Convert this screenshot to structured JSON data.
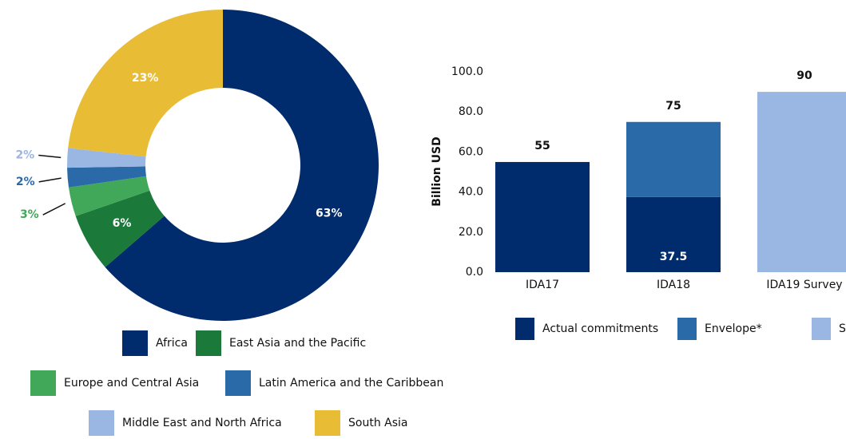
{
  "chart_data": [
    {
      "type": "donut",
      "categories": [
        "Africa",
        "East Asia and the Pacific",
        "Europe and Central Asia",
        "Latin America and the Caribbean",
        "Middle East and North Africa",
        "South Asia"
      ],
      "values": [
        63,
        6,
        3,
        2,
        2,
        23
      ],
      "value_labels": [
        "63%",
        "6%",
        "3%",
        "2%",
        "2%",
        "23%"
      ],
      "colors": [
        "#002b6c",
        "#1b7a3a",
        "#41a85a",
        "#2a6aa8",
        "#9ab6e2",
        "#e8bd35"
      ]
    },
    {
      "type": "stacked_bar",
      "ylabel": "Billion USD",
      "categories": [
        "IDA17",
        "IDA18",
        "IDA19 Survey"
      ],
      "series": [
        {
          "name": "Actual commitments",
          "color": "#002b6c",
          "values": [
            55,
            37.5,
            null
          ]
        },
        {
          "name": "Envelope*",
          "color": "#2a6aa8",
          "values": [
            null,
            37.5,
            null
          ]
        },
        {
          "name": "Survey",
          "color": "#9ab6e2",
          "values": [
            null,
            null,
            90
          ]
        }
      ],
      "totals": [
        55,
        75,
        90
      ],
      "ylim": [
        0,
        100
      ],
      "yticks": [
        {
          "value": 0,
          "label": "0.0"
        },
        {
          "value": 20,
          "label": "20.0"
        },
        {
          "value": 40,
          "label": "40.0"
        },
        {
          "value": 60,
          "label": "60.0"
        },
        {
          "value": 80,
          "label": "80.0"
        },
        {
          "value": 100,
          "label": "100.0"
        }
      ]
    }
  ]
}
